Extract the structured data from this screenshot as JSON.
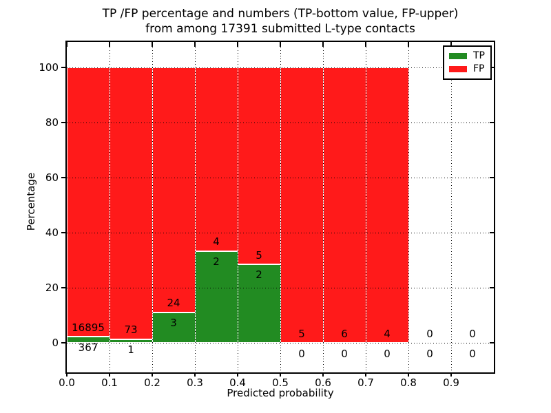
{
  "chart_data": {
    "type": "bar",
    "stacked": true,
    "title": "TP /FP percentage and numbers (TP-bottom value, FP-upper)\nfrom among 17391 submitted L-type contacts",
    "title_lines": [
      "TP /FP percentage and numbers (TP-bottom value, FP-upper)",
      "from among 17391 submitted L-type contacts"
    ],
    "xlabel": "Predicted probability",
    "ylabel": "Percentage",
    "xlim": [
      0.0,
      1.0
    ],
    "ylim": [
      -10.75,
      109.25
    ],
    "x_tick_labels": [
      "0.0",
      "0.1",
      "0.2",
      "0.3",
      "0.4",
      "0.5",
      "0.6",
      "0.7",
      "0.8",
      "0.9"
    ],
    "y_tick_values": [
      0,
      20,
      40,
      60,
      80,
      100
    ],
    "grid": "dotted-black-over-bars",
    "bar_edge_color": "#ffffff",
    "total_submitted": 17391,
    "legend": {
      "position": "upper right",
      "entries": [
        {
          "label": "TP",
          "color": "#228b22"
        },
        {
          "label": "FP",
          "color": "#ff1a1a"
        }
      ]
    },
    "bins": [
      {
        "x_start": 0.0,
        "x_end": 0.1,
        "tp_count": 367,
        "fp_count": 16895,
        "tp_pct": 2.13,
        "stack_top_pct": 100
      },
      {
        "x_start": 0.1,
        "x_end": 0.2,
        "tp_count": 1,
        "fp_count": 73,
        "tp_pct": 1.35,
        "stack_top_pct": 100
      },
      {
        "x_start": 0.2,
        "x_end": 0.3,
        "tp_count": 3,
        "fp_count": 24,
        "tp_pct": 11.11,
        "stack_top_pct": 100
      },
      {
        "x_start": 0.3,
        "x_end": 0.4,
        "tp_count": 2,
        "fp_count": 4,
        "tp_pct": 33.33,
        "stack_top_pct": 100
      },
      {
        "x_start": 0.4,
        "x_end": 0.5,
        "tp_count": 2,
        "fp_count": 5,
        "tp_pct": 28.57,
        "stack_top_pct": 100
      },
      {
        "x_start": 0.5,
        "x_end": 0.6,
        "tp_count": 0,
        "fp_count": 5,
        "tp_pct": 0,
        "stack_top_pct": 100
      },
      {
        "x_start": 0.6,
        "x_end": 0.7,
        "tp_count": 0,
        "fp_count": 6,
        "tp_pct": 0,
        "stack_top_pct": 100
      },
      {
        "x_start": 0.7,
        "x_end": 0.8,
        "tp_count": 0,
        "fp_count": 4,
        "tp_pct": 0,
        "stack_top_pct": 100
      },
      {
        "x_start": 0.8,
        "x_end": 0.9,
        "tp_count": 0,
        "fp_count": 0,
        "tp_pct": 0,
        "stack_top_pct": 0
      },
      {
        "x_start": 0.9,
        "x_end": 1.0,
        "tp_count": 0,
        "fp_count": 0,
        "tp_pct": 0,
        "stack_top_pct": 0
      }
    ],
    "annotation_rule": {
      "fp_label_offset_pct": 3.3,
      "tp_label_offset_pct": -3.9
    }
  }
}
